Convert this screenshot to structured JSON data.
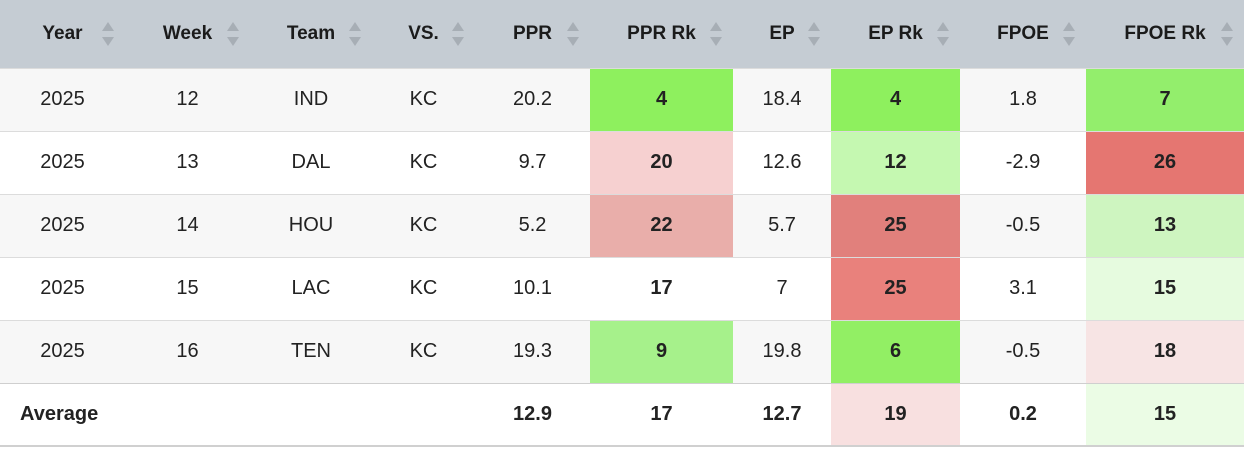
{
  "columns": [
    {
      "label": "Year"
    },
    {
      "label": "Week"
    },
    {
      "label": "Team"
    },
    {
      "label": "VS."
    },
    {
      "label": "PPR"
    },
    {
      "label": "PPR Rk"
    },
    {
      "label": "EP"
    },
    {
      "label": "EP Rk"
    },
    {
      "label": "FPOE"
    },
    {
      "label": "FPOE Rk"
    }
  ],
  "rows": [
    {
      "year": "2025",
      "week": "12",
      "team": "IND",
      "vs": "KC",
      "ppr": "20.2",
      "ppr_rk": "4",
      "ep": "18.4",
      "ep_rk": "4",
      "fpoe": "1.8",
      "fpoe_rk": "7",
      "colors": {
        "ppr_rk": "#8ef05e",
        "ep_rk": "#8ef05e",
        "fpoe_rk": "#93ee6c"
      }
    },
    {
      "year": "2025",
      "week": "13",
      "team": "DAL",
      "vs": "KC",
      "ppr": "9.7",
      "ppr_rk": "20",
      "ep": "12.6",
      "ep_rk": "12",
      "fpoe": "-2.9",
      "fpoe_rk": "26",
      "colors": {
        "ppr_rk": "#f6d0d0",
        "ep_rk": "#c5f8b1",
        "fpoe_rk": "#e57671"
      }
    },
    {
      "year": "2025",
      "week": "14",
      "team": "HOU",
      "vs": "KC",
      "ppr": "5.2",
      "ppr_rk": "22",
      "ep": "5.7",
      "ep_rk": "25",
      "fpoe": "-0.5",
      "fpoe_rk": "13",
      "colors": {
        "ppr_rk": "#e9aeaa",
        "ep_rk": "#e1807c",
        "fpoe_rk": "#cef5c0"
      }
    },
    {
      "year": "2025",
      "week": "15",
      "team": "LAC",
      "vs": "KC",
      "ppr": "10.1",
      "ppr_rk": "17",
      "ep": "7",
      "ep_rk": "25",
      "fpoe": "3.1",
      "fpoe_rk": "15",
      "colors": {
        "ppr_rk": "",
        "ep_rk": "#e9817c",
        "fpoe_rk": "#e6fbdf"
      }
    },
    {
      "year": "2025",
      "week": "16",
      "team": "TEN",
      "vs": "KC",
      "ppr": "19.3",
      "ppr_rk": "9",
      "ep": "19.8",
      "ep_rk": "6",
      "fpoe": "-0.5",
      "fpoe_rk": "18",
      "colors": {
        "ppr_rk": "#a6f18b",
        "ep_rk": "#92ef64",
        "fpoe_rk": "#f7e4e4"
      }
    }
  ],
  "average": {
    "label": "Average",
    "ppr": "12.9",
    "ppr_rk": "17",
    "ep": "12.7",
    "ep_rk": "19",
    "fpoe": "0.2",
    "fpoe_rk": "15",
    "colors": {
      "ppr_rk": "",
      "ep_rk": "#f8e0e0",
      "fpoe_rk": "#ebfce5"
    }
  },
  "colors": {
    "header_bg": "#c5ccd3",
    "row_alt_bg": "#f7f7f7",
    "row_bg": "#ffffff",
    "sort_arrow": "#a7aeb5"
  },
  "icons": {
    "sort": "sort-arrows-icon"
  }
}
